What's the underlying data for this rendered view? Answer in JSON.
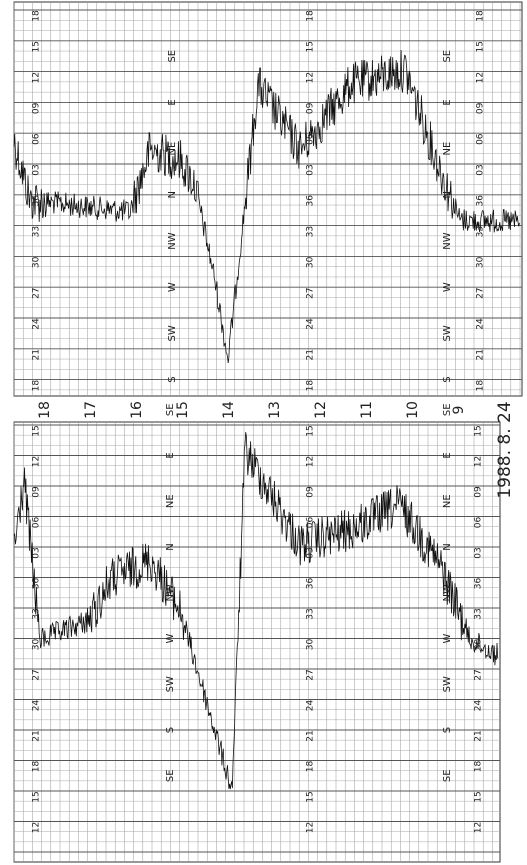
{
  "date": "1988. 8. 24",
  "hours": [
    "18",
    "17",
    "16",
    "15",
    "14",
    "13",
    "12",
    "11",
    "10",
    "9"
  ],
  "top_panel": {
    "degree_labels": [
      "18",
      "15",
      "12",
      "09",
      "06",
      "03",
      "36",
      "33",
      "30",
      "27",
      "24",
      "21",
      "18"
    ],
    "direction_labels": [
      "SE",
      "E",
      "NE",
      "N",
      "NW",
      "W",
      "SW",
      "S"
    ]
  },
  "bottom_panel": {
    "degree_labels": [
      "15",
      "12",
      "09",
      "06",
      "03",
      "36",
      "33",
      "30",
      "27",
      "24",
      "21",
      "18",
      "15",
      "12"
    ],
    "direction_labels": [
      "SE",
      "E",
      "NE",
      "N",
      "NW",
      "W",
      "SW",
      "S",
      "SE"
    ]
  }
}
